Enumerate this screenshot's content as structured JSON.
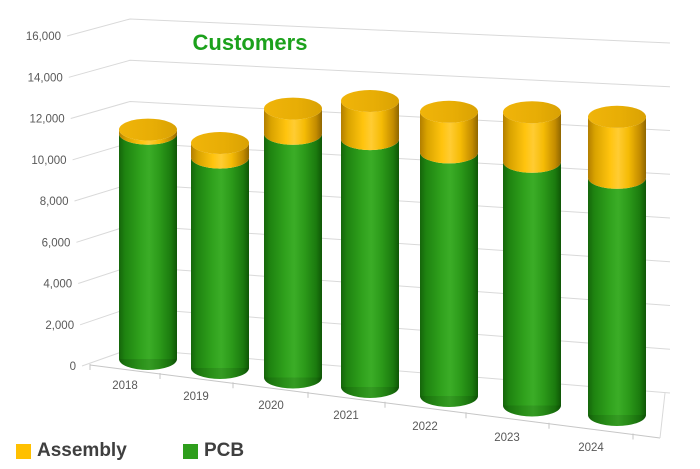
{
  "title": {
    "text": "Customers",
    "color": "#1CA11C"
  },
  "chart_data": {
    "type": "bar",
    "subtype": "3d-stacked-cylinders",
    "title": "Customers",
    "categories": [
      "2018",
      "2019",
      "2020",
      "2021",
      "2022",
      "2023",
      "2024"
    ],
    "series": [
      {
        "name": "Assembly",
        "color": "#FFC000",
        "values": [
          200,
          700,
          1200,
          1800,
          1900,
          2300,
          2800
        ]
      },
      {
        "name": "PCB",
        "color": "#2E9E1C",
        "values": [
          10900,
          10100,
          11600,
          11700,
          11400,
          11300,
          10900
        ]
      }
    ],
    "stacked": true,
    "xlabel": "",
    "ylabel": "",
    "ylim": [
      0,
      16000
    ],
    "y_tick_step": 2000,
    "y_ticks": [
      "0",
      "2,000",
      "4,000",
      "6,000",
      "8,000",
      "10,000",
      "12,000",
      "14,000",
      "16,000"
    ],
    "grid": true,
    "legend_position": "bottom-left"
  },
  "legend": {
    "items": [
      {
        "label": "Assembly",
        "color": "#FFC000"
      },
      {
        "label": "PCB",
        "color": "#2E9E1C"
      }
    ]
  },
  "axis": {
    "text_color": "#595959",
    "grid_color": "#D9D9D9",
    "baseline_color": "#C6C6C6"
  }
}
